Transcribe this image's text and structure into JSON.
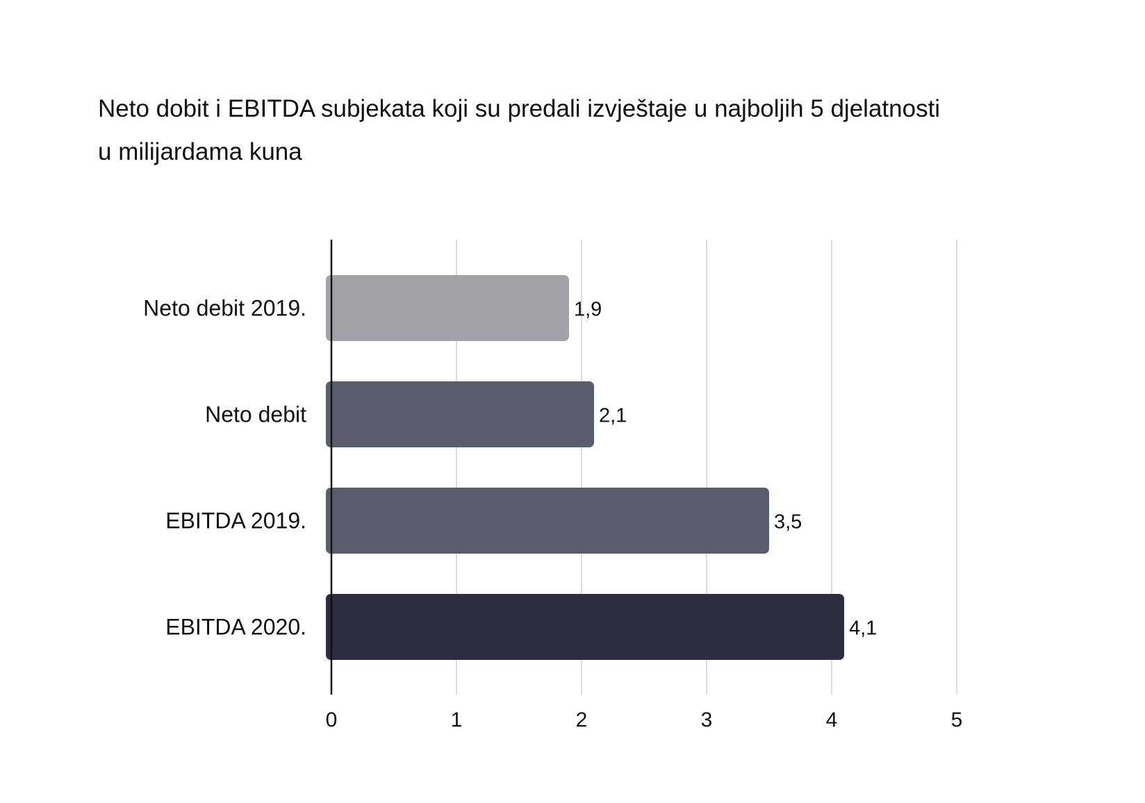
{
  "chart_data": {
    "type": "bar",
    "orientation": "horizontal",
    "title": "Neto dobit i EBITDA subjekata koji su predali izvještaje u najboljih 5 djelatnosti",
    "subtitle": "u milijardama kuna",
    "categories": [
      "Neto debit 2019.",
      "Neto debit",
      "EBITDA 2019.",
      "EBITDA 2020."
    ],
    "values": [
      1.9,
      2.1,
      3.5,
      4.1
    ],
    "value_labels": [
      "1,9",
      "2,1",
      "3,5",
      "4,1"
    ],
    "bar_colors": [
      "#a2a3a8",
      "#5a5d6b",
      "#5a5d6b",
      "#2c2d40"
    ],
    "xlim": [
      0,
      5
    ],
    "x_ticks": [
      "0",
      "1",
      "2",
      "3",
      "4",
      "5"
    ],
    "xlabel": "",
    "ylabel": "",
    "grid": true,
    "legend": "none"
  }
}
